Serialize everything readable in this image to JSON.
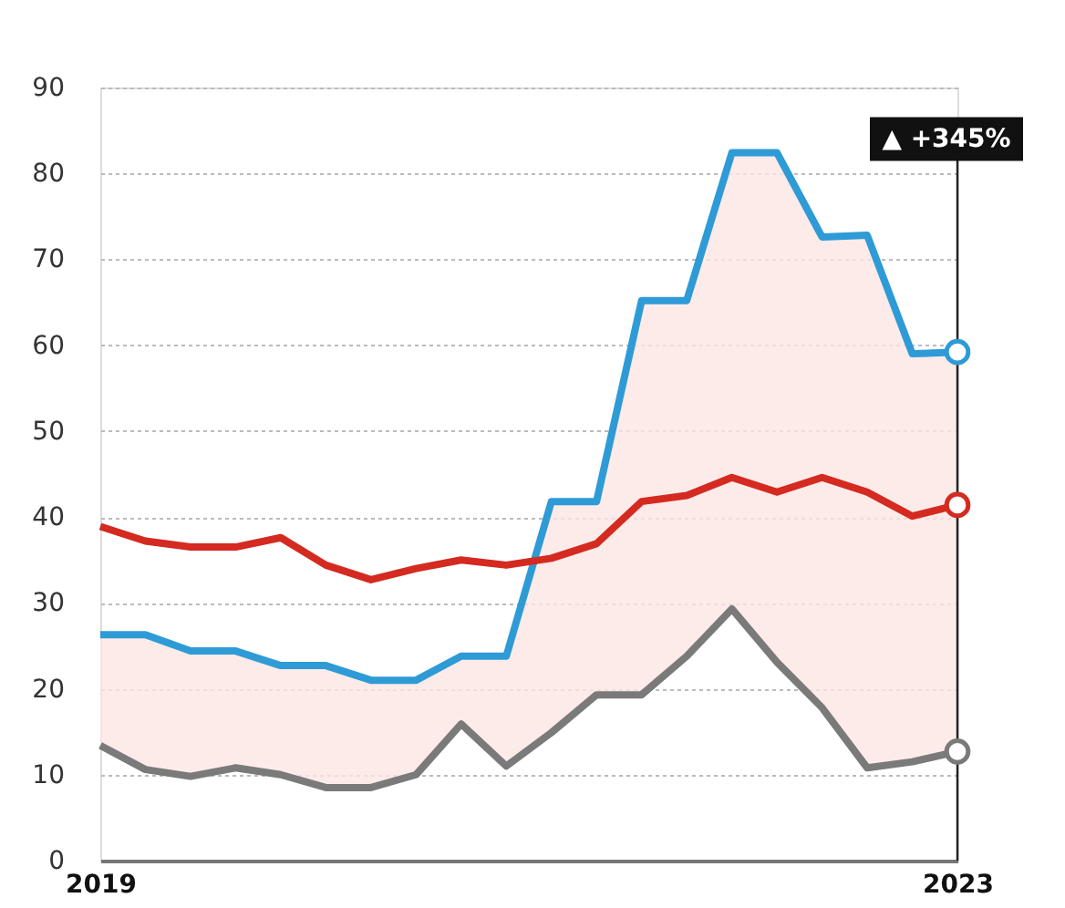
{
  "chart_data": {
    "type": "line",
    "categories": [
      "2019",
      null,
      null,
      null,
      null,
      null,
      null,
      null,
      null,
      null,
      null,
      null,
      null,
      null,
      null,
      null,
      null,
      null,
      null,
      "2023"
    ],
    "series": [
      {
        "color": "#2e9bd6",
        "values": [
          26.3,
          26.3,
          24.4,
          24.4,
          22.7,
          22.7,
          21.0,
          21.0,
          23.8,
          23.8,
          41.8,
          41.8,
          65.2,
          65.2,
          82.4,
          82.4,
          72.6,
          72.8,
          59.0,
          59.2
        ]
      },
      {
        "color": "#d42a20",
        "values": [
          38.9,
          37.2,
          36.5,
          36.5,
          37.6,
          34.4,
          32.7,
          34.0,
          35.0,
          34.4,
          35.2,
          36.9,
          41.8,
          42.5,
          44.6,
          42.9,
          44.6,
          42.9,
          40.1,
          41.4
        ],
        "lower": [
          13.4,
          10.6,
          9.8,
          10.8,
          10.0,
          8.5,
          8.5,
          10.0,
          15.9,
          11.0,
          14.9,
          19.3,
          19.3,
          23.8,
          29.3,
          23.1,
          17.8,
          10.8,
          11.5,
          12.7
        ],
        "upper": [
          26.3,
          26.3,
          24.4,
          24.4,
          22.7,
          22.7,
          21.0,
          21.0,
          23.8,
          23.8,
          41.8,
          41.8,
          65.2,
          65.2,
          82.4,
          82.4,
          72.6,
          72.8,
          59.0,
          59.2
        ]
      },
      {
        "color": "#7a7a7a",
        "values": [
          13.4,
          10.6,
          9.8,
          10.8,
          10.0,
          8.5,
          8.5,
          10.0,
          15.9,
          11.0,
          14.9,
          19.3,
          19.3,
          23.8,
          29.3,
          23.1,
          17.8,
          10.8,
          11.5,
          12.7
        ]
      }
    ],
    "ylim": [
      0,
      90
    ],
    "yticks": [
      0,
      10,
      20,
      30,
      40,
      50,
      60,
      70,
      80,
      90
    ],
    "grid": "y",
    "line_style": "solid",
    "ref_lines": [
      {
        "axis": "x",
        "value": "2023",
        "color": "#222222"
      }
    ],
    "annotations": [
      {
        "text": "▲ +345%",
        "x": "2023",
        "y": 84
      }
    ]
  }
}
